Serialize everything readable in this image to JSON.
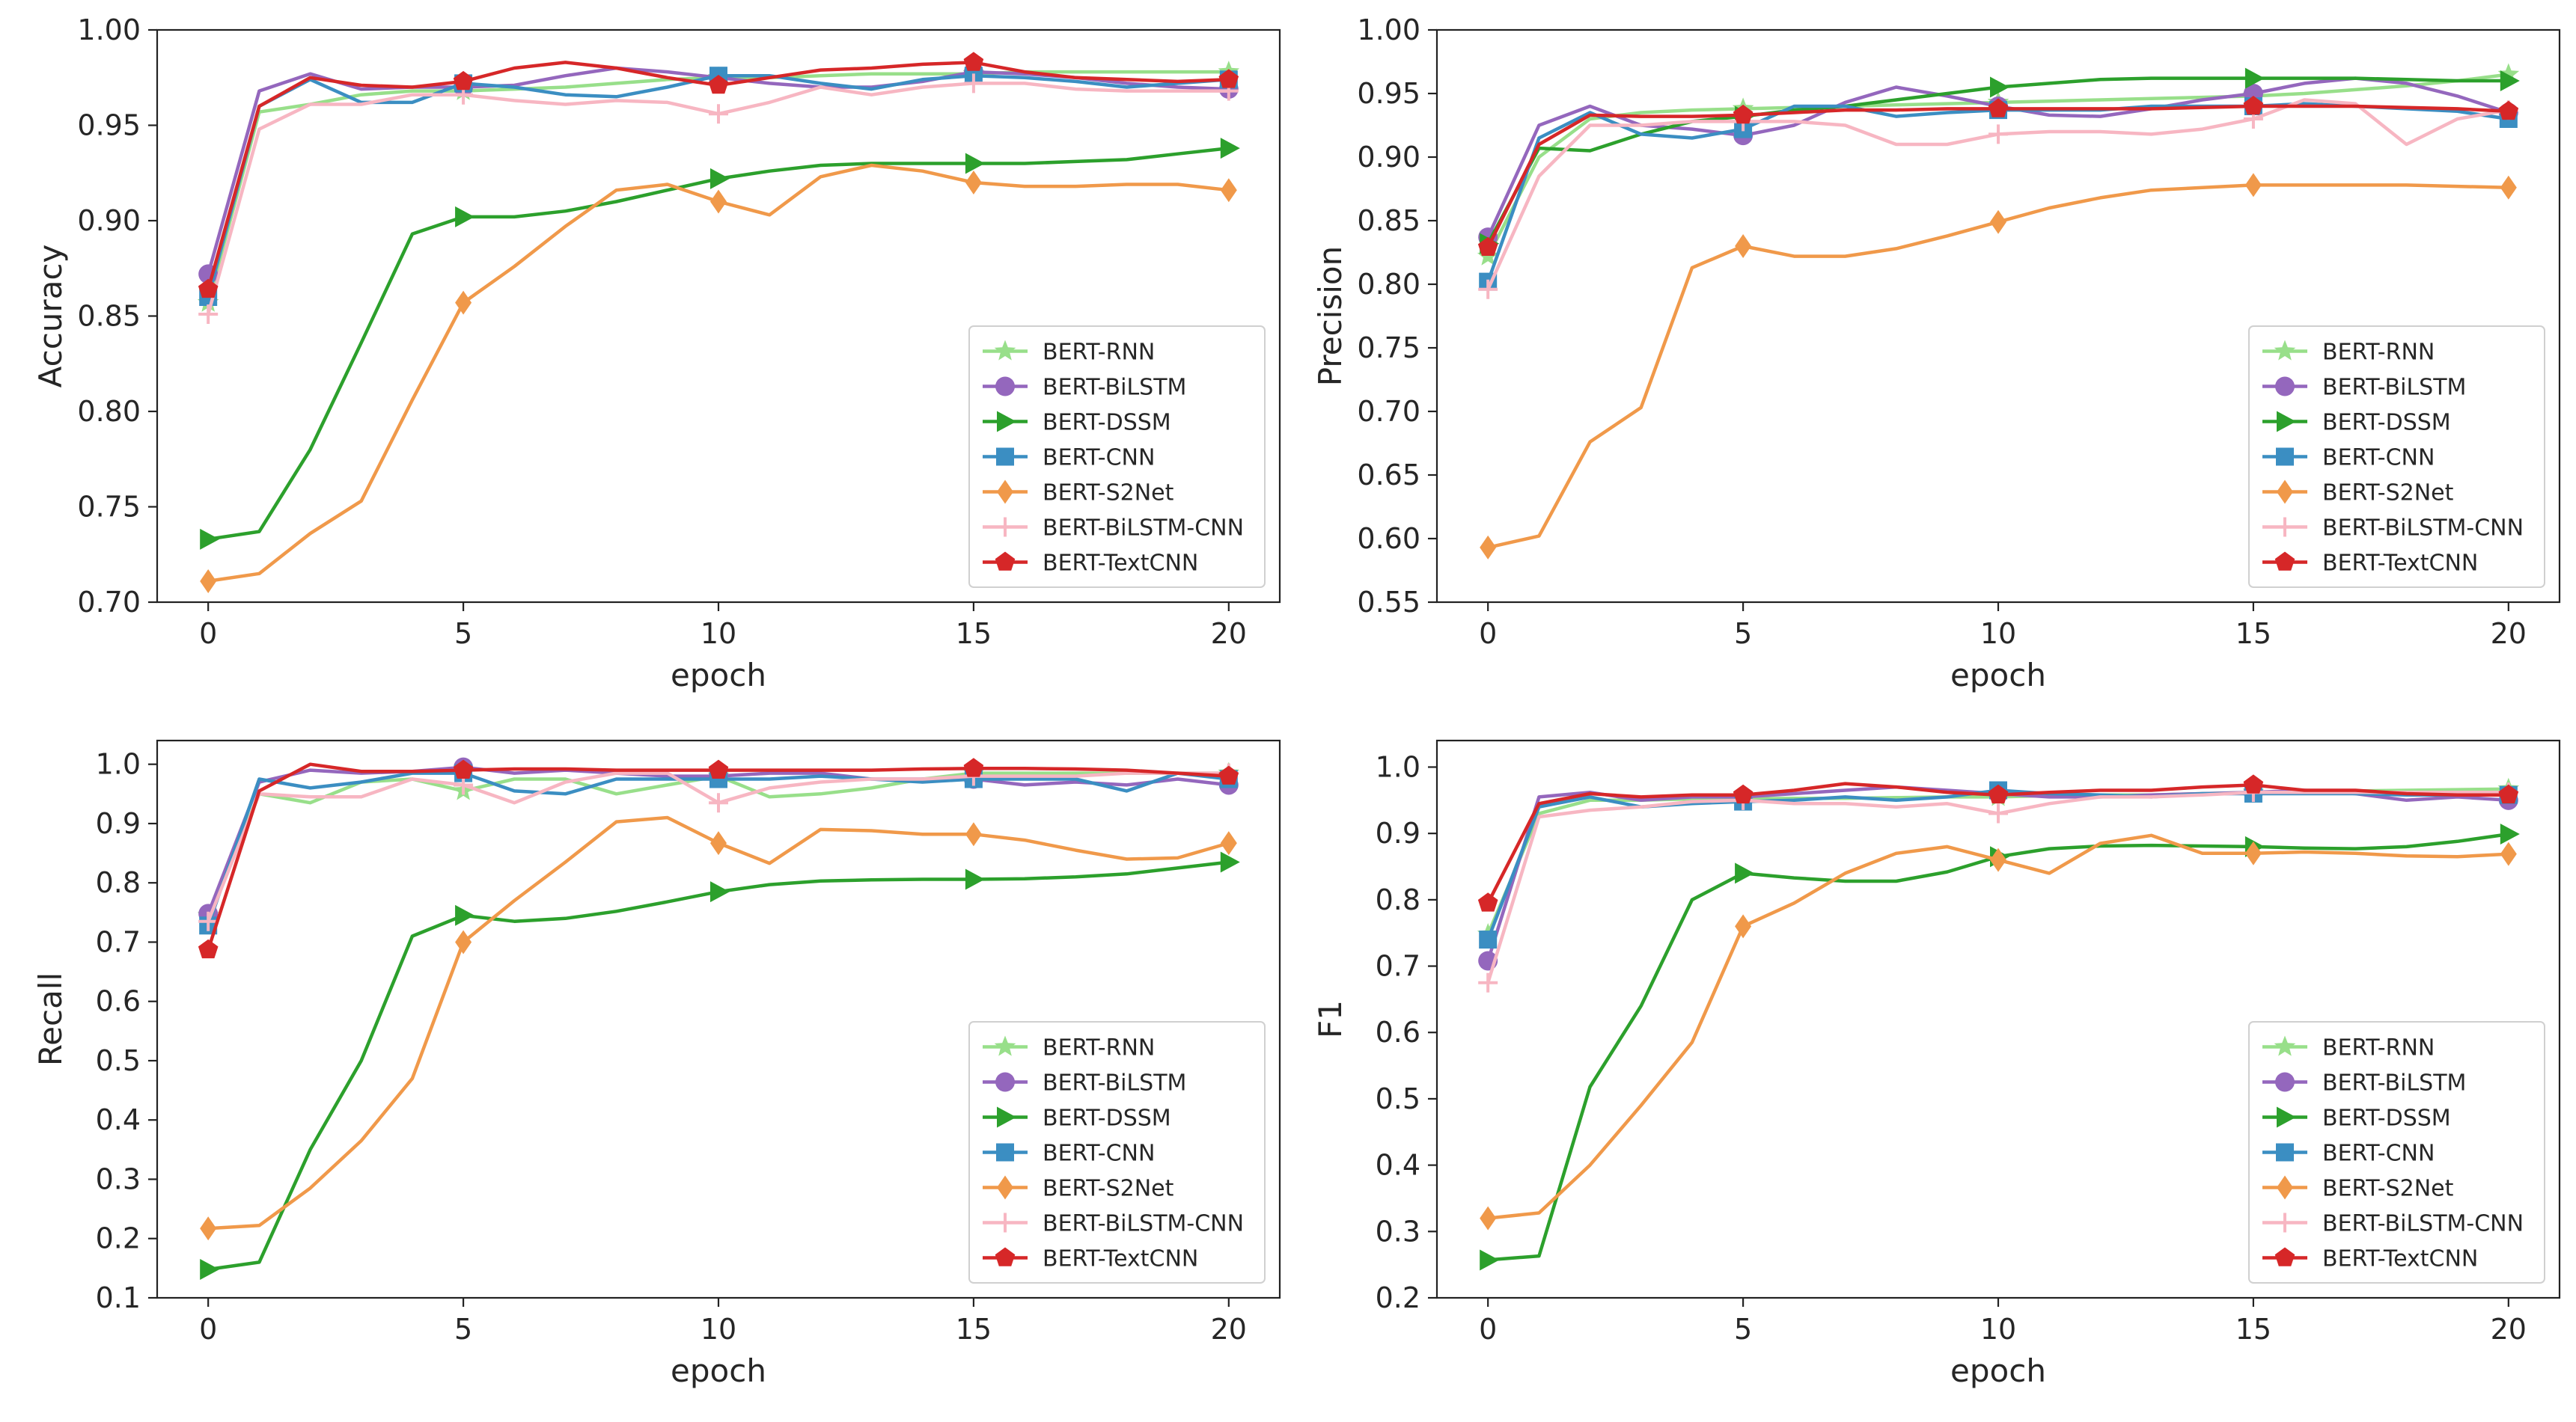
{
  "chart_data": [
    {
      "type": "line",
      "xlabel": "epoch",
      "ylabel": "Accuracy",
      "xlim": [
        -1,
        21
      ],
      "ylim": [
        0.7,
        1.0
      ],
      "xticks": [
        "0",
        "5",
        "10",
        "15",
        "20"
      ],
      "yticks": [
        "0.70",
        "0.75",
        "0.80",
        "0.85",
        "0.90",
        "0.95",
        "1.00"
      ],
      "legend_position": "lower-right",
      "markevery": [
        0,
        5,
        10,
        15,
        20
      ],
      "x": [
        0,
        1,
        2,
        3,
        4,
        5,
        6,
        7,
        8,
        9,
        10,
        11,
        12,
        13,
        14,
        15,
        16,
        17,
        18,
        19,
        20
      ],
      "series": [
        {
          "name": "BERT-RNN",
          "color": "#98df8a",
          "marker": "star",
          "values": [
            0.857,
            0.957,
            0.961,
            0.966,
            0.968,
            0.968,
            0.969,
            0.97,
            0.972,
            0.974,
            0.975,
            0.975,
            0.976,
            0.977,
            0.977,
            0.977,
            0.978,
            0.978,
            0.978,
            0.978,
            0.978
          ]
        },
        {
          "name": "BERT-BiLSTM",
          "color": "#9467bd",
          "marker": "circle",
          "values": [
            0.872,
            0.968,
            0.977,
            0.969,
            0.97,
            0.97,
            0.971,
            0.976,
            0.98,
            0.978,
            0.975,
            0.972,
            0.97,
            0.97,
            0.973,
            0.978,
            0.977,
            0.975,
            0.972,
            0.97,
            0.969
          ]
        },
        {
          "name": "BERT-DSSM",
          "color": "#2ca02c",
          "marker": "triangle-right",
          "values": [
            0.733,
            0.737,
            0.78,
            0.836,
            0.893,
            0.902,
            0.902,
            0.905,
            0.91,
            0.916,
            0.922,
            0.926,
            0.929,
            0.93,
            0.93,
            0.93,
            0.93,
            0.931,
            0.932,
            0.935,
            0.938
          ]
        },
        {
          "name": "BERT-CNN",
          "color": "#3b8ec2",
          "marker": "square",
          "values": [
            0.86,
            0.96,
            0.974,
            0.962,
            0.962,
            0.972,
            0.97,
            0.966,
            0.965,
            0.97,
            0.976,
            0.976,
            0.972,
            0.969,
            0.974,
            0.976,
            0.975,
            0.973,
            0.97,
            0.972,
            0.974
          ]
        },
        {
          "name": "BERT-S2Net",
          "color": "#f0994a",
          "marker": "diamond",
          "values": [
            0.711,
            0.715,
            0.736,
            0.753,
            0.806,
            0.857,
            0.876,
            0.897,
            0.916,
            0.919,
            0.91,
            0.903,
            0.923,
            0.929,
            0.926,
            0.92,
            0.918,
            0.918,
            0.919,
            0.919,
            0.916
          ]
        },
        {
          "name": "BERT-BiLSTM-CNN",
          "color": "#f7b6c2",
          "marker": "plus",
          "values": [
            0.851,
            0.948,
            0.961,
            0.961,
            0.966,
            0.966,
            0.963,
            0.961,
            0.963,
            0.962,
            0.956,
            0.962,
            0.97,
            0.966,
            0.97,
            0.972,
            0.972,
            0.969,
            0.968,
            0.968,
            0.968
          ]
        },
        {
          "name": "BERT-TextCNN",
          "color": "#d62728",
          "marker": "pentagon",
          "values": [
            0.864,
            0.96,
            0.975,
            0.971,
            0.97,
            0.973,
            0.98,
            0.983,
            0.98,
            0.975,
            0.971,
            0.975,
            0.979,
            0.98,
            0.982,
            0.983,
            0.978,
            0.975,
            0.974,
            0.973,
            0.974
          ]
        }
      ]
    },
    {
      "type": "line",
      "xlabel": "epoch",
      "ylabel": "Precision",
      "xlim": [
        -1,
        21
      ],
      "ylim": [
        0.55,
        1.0
      ],
      "xticks": [
        "0",
        "5",
        "10",
        "15",
        "20"
      ],
      "yticks": [
        "0.55",
        "0.60",
        "0.65",
        "0.70",
        "0.75",
        "0.80",
        "0.85",
        "0.90",
        "0.95",
        "1.00"
      ],
      "legend_position": "lower-right",
      "markevery": [
        0,
        5,
        10,
        15,
        20
      ],
      "x": [
        0,
        1,
        2,
        3,
        4,
        5,
        6,
        7,
        8,
        9,
        10,
        11,
        12,
        13,
        14,
        15,
        16,
        17,
        18,
        19,
        20
      ],
      "series": [
        {
          "name": "BERT-RNN",
          "color": "#98df8a",
          "marker": "star",
          "values": [
            0.822,
            0.9,
            0.93,
            0.935,
            0.937,
            0.938,
            0.939,
            0.94,
            0.941,
            0.942,
            0.943,
            0.944,
            0.945,
            0.946,
            0.947,
            0.948,
            0.95,
            0.953,
            0.956,
            0.96,
            0.965
          ]
        },
        {
          "name": "BERT-BiLSTM",
          "color": "#9467bd",
          "marker": "circle",
          "values": [
            0.837,
            0.925,
            0.94,
            0.925,
            0.922,
            0.917,
            0.925,
            0.943,
            0.955,
            0.948,
            0.94,
            0.933,
            0.932,
            0.938,
            0.945,
            0.95,
            0.958,
            0.962,
            0.958,
            0.948,
            0.935
          ]
        },
        {
          "name": "BERT-DSSM",
          "color": "#2ca02c",
          "marker": "triangle-right",
          "values": [
            0.832,
            0.907,
            0.905,
            0.918,
            0.928,
            0.932,
            0.937,
            0.94,
            0.945,
            0.95,
            0.955,
            0.958,
            0.961,
            0.962,
            0.962,
            0.962,
            0.962,
            0.962,
            0.961,
            0.96,
            0.96
          ]
        },
        {
          "name": "BERT-CNN",
          "color": "#3b8ec2",
          "marker": "square",
          "values": [
            0.802,
            0.915,
            0.935,
            0.918,
            0.915,
            0.922,
            0.94,
            0.94,
            0.932,
            0.935,
            0.937,
            0.937,
            0.937,
            0.94,
            0.94,
            0.94,
            0.942,
            0.94,
            0.938,
            0.936,
            0.93
          ]
        },
        {
          "name": "BERT-S2Net",
          "color": "#f0994a",
          "marker": "diamond",
          "values": [
            0.593,
            0.602,
            0.676,
            0.703,
            0.813,
            0.83,
            0.822,
            0.822,
            0.828,
            0.838,
            0.849,
            0.86,
            0.868,
            0.874,
            0.876,
            0.878,
            0.878,
            0.878,
            0.878,
            0.877,
            0.876
          ]
        },
        {
          "name": "BERT-BiLSTM-CNN",
          "color": "#f7b6c2",
          "marker": "plus",
          "values": [
            0.796,
            0.885,
            0.925,
            0.925,
            0.928,
            0.928,
            0.928,
            0.925,
            0.91,
            0.91,
            0.918,
            0.92,
            0.92,
            0.918,
            0.922,
            0.93,
            0.945,
            0.942,
            0.91,
            0.93,
            0.937
          ]
        },
        {
          "name": "BERT-TextCNN",
          "color": "#d62728",
          "marker": "pentagon",
          "values": [
            0.829,
            0.91,
            0.933,
            0.932,
            0.932,
            0.933,
            0.935,
            0.937,
            0.937,
            0.938,
            0.938,
            0.938,
            0.938,
            0.938,
            0.939,
            0.94,
            0.94,
            0.94,
            0.939,
            0.938,
            0.936
          ]
        }
      ]
    },
    {
      "type": "line",
      "xlabel": "epoch",
      "ylabel": "Recall",
      "xlim": [
        -1,
        21
      ],
      "ylim": [
        0.1,
        1.04
      ],
      "xticks": [
        "0",
        "5",
        "10",
        "15",
        "20"
      ],
      "yticks": [
        "0.1",
        "0.2",
        "0.3",
        "0.4",
        "0.5",
        "0.6",
        "0.7",
        "0.8",
        "0.9",
        "1.0"
      ],
      "legend_position": "lower-right",
      "markevery": [
        0,
        5,
        10,
        15,
        20
      ],
      "x": [
        0,
        1,
        2,
        3,
        4,
        5,
        6,
        7,
        8,
        9,
        10,
        11,
        12,
        13,
        14,
        15,
        16,
        17,
        18,
        19,
        20
      ],
      "series": [
        {
          "name": "BERT-RNN",
          "color": "#98df8a",
          "marker": "star",
          "values": [
            0.745,
            0.95,
            0.935,
            0.97,
            0.975,
            0.955,
            0.975,
            0.975,
            0.95,
            0.965,
            0.98,
            0.945,
            0.95,
            0.96,
            0.975,
            0.985,
            0.985,
            0.985,
            0.985,
            0.985,
            0.985
          ]
        },
        {
          "name": "BERT-BiLSTM",
          "color": "#9467bd",
          "marker": "circle",
          "values": [
            0.748,
            0.97,
            0.99,
            0.985,
            0.988,
            0.995,
            0.985,
            0.99,
            0.985,
            0.98,
            0.98,
            0.985,
            0.985,
            0.975,
            0.975,
            0.975,
            0.965,
            0.97,
            0.965,
            0.975,
            0.965
          ]
        },
        {
          "name": "BERT-DSSM",
          "color": "#2ca02c",
          "marker": "triangle-right",
          "values": [
            0.148,
            0.16,
            0.35,
            0.5,
            0.71,
            0.745,
            0.735,
            0.74,
            0.752,
            0.768,
            0.785,
            0.797,
            0.803,
            0.805,
            0.806,
            0.806,
            0.807,
            0.81,
            0.815,
            0.825,
            0.835
          ]
        },
        {
          "name": "BERT-CNN",
          "color": "#3b8ec2",
          "marker": "square",
          "values": [
            0.728,
            0.975,
            0.96,
            0.97,
            0.985,
            0.985,
            0.955,
            0.95,
            0.975,
            0.975,
            0.975,
            0.975,
            0.98,
            0.975,
            0.97,
            0.975,
            0.975,
            0.975,
            0.955,
            0.985,
            0.975
          ]
        },
        {
          "name": "BERT-S2Net",
          "color": "#f0994a",
          "marker": "diamond",
          "values": [
            0.217,
            0.222,
            0.285,
            0.365,
            0.47,
            0.7,
            0.77,
            0.835,
            0.903,
            0.91,
            0.867,
            0.833,
            0.89,
            0.888,
            0.882,
            0.882,
            0.872,
            0.855,
            0.84,
            0.842,
            0.867
          ]
        },
        {
          "name": "BERT-BiLSTM-CNN",
          "color": "#f7b6c2",
          "marker": "plus",
          "values": [
            0.735,
            0.95,
            0.945,
            0.945,
            0.975,
            0.965,
            0.935,
            0.97,
            0.985,
            0.985,
            0.935,
            0.96,
            0.97,
            0.975,
            0.975,
            0.98,
            0.98,
            0.98,
            0.985,
            0.985,
            0.985
          ]
        },
        {
          "name": "BERT-TextCNN",
          "color": "#d62728",
          "marker": "pentagon",
          "values": [
            0.687,
            0.955,
            1.0,
            0.988,
            0.988,
            0.99,
            0.992,
            0.992,
            0.99,
            0.99,
            0.99,
            0.99,
            0.99,
            0.99,
            0.992,
            0.993,
            0.993,
            0.992,
            0.99,
            0.985,
            0.98
          ]
        }
      ]
    },
    {
      "type": "line",
      "xlabel": "epoch",
      "ylabel": "F1",
      "xlim": [
        -1,
        21
      ],
      "ylim": [
        0.2,
        1.04
      ],
      "xticks": [
        "0",
        "5",
        "10",
        "15",
        "20"
      ],
      "yticks": [
        "0.2",
        "0.3",
        "0.4",
        "0.5",
        "0.6",
        "0.7",
        "0.8",
        "0.9",
        "1.0"
      ],
      "legend_position": "lower-right",
      "markevery": [
        0,
        5,
        10,
        15,
        20
      ],
      "x": [
        0,
        1,
        2,
        3,
        4,
        5,
        6,
        7,
        8,
        9,
        10,
        11,
        12,
        13,
        14,
        15,
        16,
        17,
        18,
        19,
        20
      ],
      "series": [
        {
          "name": "BERT-RNN",
          "color": "#98df8a",
          "marker": "star",
          "values": [
            0.748,
            0.93,
            0.95,
            0.95,
            0.952,
            0.952,
            0.953,
            0.953,
            0.954,
            0.955,
            0.955,
            0.957,
            0.958,
            0.958,
            0.96,
            0.962,
            0.963,
            0.964,
            0.965,
            0.966,
            0.967
          ]
        },
        {
          "name": "BERT-BiLSTM",
          "color": "#9467bd",
          "marker": "circle",
          "values": [
            0.708,
            0.955,
            0.962,
            0.95,
            0.955,
            0.955,
            0.96,
            0.965,
            0.97,
            0.965,
            0.96,
            0.955,
            0.955,
            0.958,
            0.96,
            0.962,
            0.965,
            0.96,
            0.95,
            0.955,
            0.95
          ]
        },
        {
          "name": "BERT-DSSM",
          "color": "#2ca02c",
          "marker": "triangle-right",
          "values": [
            0.257,
            0.263,
            0.518,
            0.64,
            0.8,
            0.84,
            0.833,
            0.828,
            0.828,
            0.842,
            0.865,
            0.877,
            0.881,
            0.882,
            0.881,
            0.88,
            0.878,
            0.877,
            0.88,
            0.888,
            0.899
          ]
        },
        {
          "name": "BERT-CNN",
          "color": "#3b8ec2",
          "marker": "square",
          "values": [
            0.74,
            0.94,
            0.955,
            0.94,
            0.945,
            0.948,
            0.95,
            0.955,
            0.95,
            0.955,
            0.965,
            0.96,
            0.958,
            0.955,
            0.96,
            0.96,
            0.96,
            0.96,
            0.958,
            0.958,
            0.958
          ]
        },
        {
          "name": "BERT-S2Net",
          "color": "#f0994a",
          "marker": "diamond",
          "values": [
            0.32,
            0.328,
            0.4,
            0.49,
            0.585,
            0.76,
            0.795,
            0.84,
            0.87,
            0.88,
            0.86,
            0.84,
            0.885,
            0.897,
            0.87,
            0.87,
            0.872,
            0.87,
            0.866,
            0.865,
            0.869
          ]
        },
        {
          "name": "BERT-BiLSTM-CNN",
          "color": "#f7b6c2",
          "marker": "plus",
          "values": [
            0.675,
            0.925,
            0.935,
            0.94,
            0.948,
            0.95,
            0.945,
            0.945,
            0.94,
            0.945,
            0.93,
            0.945,
            0.955,
            0.955,
            0.958,
            0.962,
            0.962,
            0.962,
            0.962,
            0.962,
            0.962
          ]
        },
        {
          "name": "BERT-TextCNN",
          "color": "#d62728",
          "marker": "pentagon",
          "values": [
            0.795,
            0.945,
            0.96,
            0.955,
            0.958,
            0.958,
            0.965,
            0.975,
            0.97,
            0.962,
            0.958,
            0.962,
            0.965,
            0.965,
            0.97,
            0.973,
            0.965,
            0.965,
            0.96,
            0.958,
            0.958
          ]
        }
      ]
    }
  ]
}
